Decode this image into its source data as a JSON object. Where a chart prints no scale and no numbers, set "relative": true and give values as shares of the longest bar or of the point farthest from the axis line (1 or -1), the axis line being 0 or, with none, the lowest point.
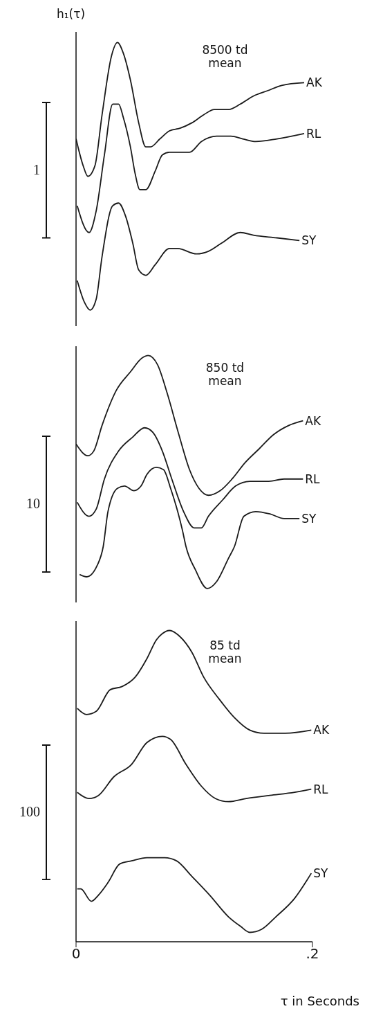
{
  "chart_data": [
    {
      "type": "line",
      "title": "8500 td mean",
      "ylabel": "h₁(τ)",
      "relative": true,
      "marker": "none",
      "xlim": [
        0,
        0.2
      ],
      "tick_labels": false,
      "annotations": [
        "1"
      ],
      "series": [
        {
          "name": "AK",
          "color": "#1a1a1a",
          "x": [
            0,
            0.006,
            0.01,
            0.016,
            0.022,
            0.03,
            0.035,
            0.04,
            0.046,
            0.053,
            0.059,
            0.063,
            0.071,
            0.079,
            0.088,
            0.098,
            0.108,
            0.117,
            0.129,
            0.139,
            0.15,
            0.162,
            0.174,
            0.193
          ],
          "values": [
            0.64,
            0.54,
            0.5,
            0.54,
            0.73,
            0.95,
            1,
            0.96,
            0.86,
            0.7,
            0.61,
            0.61,
            0.64,
            0.67,
            0.68,
            0.7,
            0.73,
            0.75,
            0.75,
            0.77,
            0.8,
            0.82,
            0.84,
            0.85
          ]
        },
        {
          "name": "RL",
          "color": "#1a1a1a",
          "x": [
            0.001,
            0.011,
            0.017,
            0.024,
            0.031,
            0.036,
            0.04,
            0.046,
            0.05,
            0.054,
            0.059,
            0.067,
            0.073,
            0.079,
            0.088,
            0.096,
            0.106,
            0.119,
            0.131,
            0.141,
            0.152,
            0.17,
            0.193
          ],
          "values": [
            0.39,
            0.29,
            0.37,
            0.58,
            0.77,
            0.77,
            0.72,
            0.61,
            0.51,
            0.45,
            0.45,
            0.52,
            0.58,
            0.59,
            0.59,
            0.59,
            0.63,
            0.65,
            0.65,
            0.64,
            0.63,
            0.64,
            0.66
          ]
        },
        {
          "name": "SY",
          "color": "#1a1a1a",
          "x": [
            0.001,
            0.007,
            0.012,
            0.017,
            0.022,
            0.031,
            0.036,
            0.042,
            0.048,
            0.053,
            0.059,
            0.067,
            0.079,
            0.086,
            0.102,
            0.112,
            0.123,
            0.139,
            0.15,
            0.17,
            0.189
          ],
          "values": [
            0.11,
            0.03,
            0,
            0.04,
            0.2,
            0.39,
            0.4,
            0.35,
            0.25,
            0.15,
            0.13,
            0.17,
            0.23,
            0.23,
            0.21,
            0.22,
            0.25,
            0.29,
            0.28,
            0.27,
            0.26
          ]
        }
      ]
    },
    {
      "type": "line",
      "title": "850 td mean",
      "relative": true,
      "marker": "none",
      "xlim": [
        0,
        0.2
      ],
      "tick_labels": false,
      "annotations": [
        "10"
      ],
      "series": [
        {
          "name": "AK",
          "color": "#1a1a1a",
          "x": [
            0,
            0.01,
            0.015,
            0.022,
            0.034,
            0.046,
            0.056,
            0.061,
            0.069,
            0.077,
            0.087,
            0.096,
            0.104,
            0.112,
            0.122,
            0.132,
            0.143,
            0.155,
            0.167,
            0.18,
            0.192
          ],
          "values": [
            0.62,
            0.57,
            0.59,
            0.7,
            0.85,
            0.93,
            0.99,
            1,
            0.96,
            0.84,
            0.66,
            0.51,
            0.43,
            0.4,
            0.42,
            0.47,
            0.54,
            0.6,
            0.66,
            0.7,
            0.72
          ]
        },
        {
          "name": "RL",
          "color": "#1a1a1a",
          "x": [
            0.001,
            0.011,
            0.017,
            0.024,
            0.036,
            0.048,
            0.058,
            0.065,
            0.073,
            0.081,
            0.091,
            0.1,
            0.106,
            0.112,
            0.124,
            0.135,
            0.147,
            0.163,
            0.176,
            0.192
          ],
          "values": [
            0.37,
            0.31,
            0.34,
            0.47,
            0.59,
            0.65,
            0.69,
            0.67,
            0.59,
            0.47,
            0.33,
            0.26,
            0.26,
            0.31,
            0.38,
            0.44,
            0.46,
            0.46,
            0.47,
            0.47
          ]
        },
        {
          "name": "SY",
          "color": "#1a1a1a",
          "x": [
            0.003,
            0.009,
            0.018,
            0.023,
            0.027,
            0.035,
            0.041,
            0.049,
            0.055,
            0.06,
            0.068,
            0.074,
            0.08,
            0.086,
            0.09,
            0.093,
            0.101,
            0.111,
            0.119,
            0.129,
            0.134,
            0.142,
            0.152,
            0.164,
            0.176,
            0.189
          ],
          "values": [
            0.06,
            0.05,
            0.1,
            0.18,
            0.33,
            0.43,
            0.44,
            0.42,
            0.44,
            0.49,
            0.52,
            0.51,
            0.43,
            0.33,
            0.25,
            0.18,
            0.08,
            0,
            0.03,
            0.13,
            0.18,
            0.31,
            0.33,
            0.32,
            0.3,
            0.3
          ]
        }
      ]
    },
    {
      "type": "line",
      "title": "85 td mean",
      "xlabel": "τ in Seconds",
      "relative": true,
      "marker": "none",
      "xlim": [
        0,
        0.2
      ],
      "xticks": [
        0,
        {
          "value": 0.2,
          "label": ".2"
        }
      ],
      "tick_labels": "x",
      "annotations": [
        "100"
      ],
      "series": [
        {
          "name": "AK",
          "color": "#1a1a1a",
          "x": [
            0.001,
            0.009,
            0.017,
            0.029,
            0.039,
            0.05,
            0.06,
            0.068,
            0.073,
            0.079,
            0.088,
            0.098,
            0.108,
            0.121,
            0.134,
            0.147,
            0.159,
            0.177,
            0.199
          ],
          "values": [
            0.75,
            0.73,
            0.74,
            0.81,
            0.82,
            0.85,
            0.91,
            0.97,
            0.99,
            1,
            0.98,
            0.93,
            0.85,
            0.78,
            0.72,
            0.68,
            0.67,
            0.67,
            0.68
          ]
        },
        {
          "name": "RL",
          "color": "#1a1a1a",
          "x": [
            0.001,
            0.011,
            0.019,
            0.032,
            0.047,
            0.06,
            0.073,
            0.08,
            0.093,
            0.106,
            0.118,
            0.129,
            0.144,
            0.164,
            0.185,
            0.199
          ],
          "values": [
            0.48,
            0.46,
            0.47,
            0.53,
            0.57,
            0.64,
            0.66,
            0.65,
            0.57,
            0.5,
            0.46,
            0.45,
            0.46,
            0.47,
            0.48,
            0.49
          ]
        },
        {
          "name": "SY",
          "color": "#1a1a1a",
          "x": [
            0.001,
            0.004,
            0.013,
            0.019,
            0.027,
            0.037,
            0.047,
            0.06,
            0.075,
            0.085,
            0.098,
            0.113,
            0.129,
            0.139,
            0.147,
            0.157,
            0.169,
            0.185,
            0.199
          ],
          "values": [
            0.17,
            0.17,
            0.13,
            0.15,
            0.19,
            0.25,
            0.26,
            0.27,
            0.27,
            0.26,
            0.21,
            0.15,
            0.08,
            0.05,
            0.03,
            0.04,
            0.08,
            0.14,
            0.22
          ]
        }
      ]
    }
  ]
}
